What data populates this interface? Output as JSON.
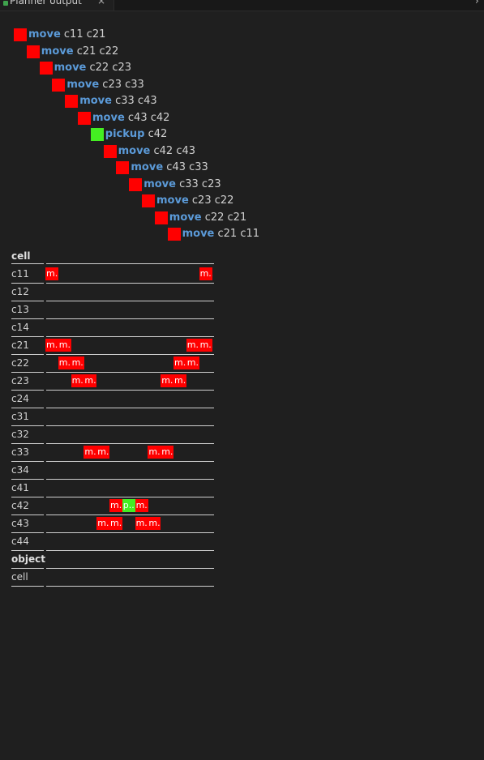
{
  "tab": {
    "label": "Planner output",
    "close": "×"
  },
  "colors": {
    "move": "#ff0000",
    "pickup": "#44ee22",
    "keyword": "#5b9ad8"
  },
  "plan": [
    {
      "action": "move",
      "args": "c11 c21"
    },
    {
      "action": "move",
      "args": "c21 c22"
    },
    {
      "action": "move",
      "args": "c22 c23"
    },
    {
      "action": "move",
      "args": "c23 c33"
    },
    {
      "action": "move",
      "args": "c33 c43"
    },
    {
      "action": "move",
      "args": "c43 c42"
    },
    {
      "action": "pickup",
      "args": "c42"
    },
    {
      "action": "move",
      "args": "c42 c43"
    },
    {
      "action": "move",
      "args": "c43 c33"
    },
    {
      "action": "move",
      "args": "c33 c23"
    },
    {
      "action": "move",
      "args": "c23 c22"
    },
    {
      "action": "move",
      "args": "c22 c21"
    },
    {
      "action": "move",
      "args": "c21 c11"
    }
  ],
  "timeline": {
    "cell_header": "cell",
    "object_header": "object",
    "object_cell_label": "cell",
    "marker_text": {
      "move": "m..",
      "pickup": "p.."
    },
    "cells": [
      "c11",
      "c12",
      "c13",
      "c14",
      "c21",
      "c22",
      "c23",
      "c24",
      "c31",
      "c32",
      "c33",
      "c34",
      "c41",
      "c42",
      "c43",
      "c44"
    ]
  }
}
